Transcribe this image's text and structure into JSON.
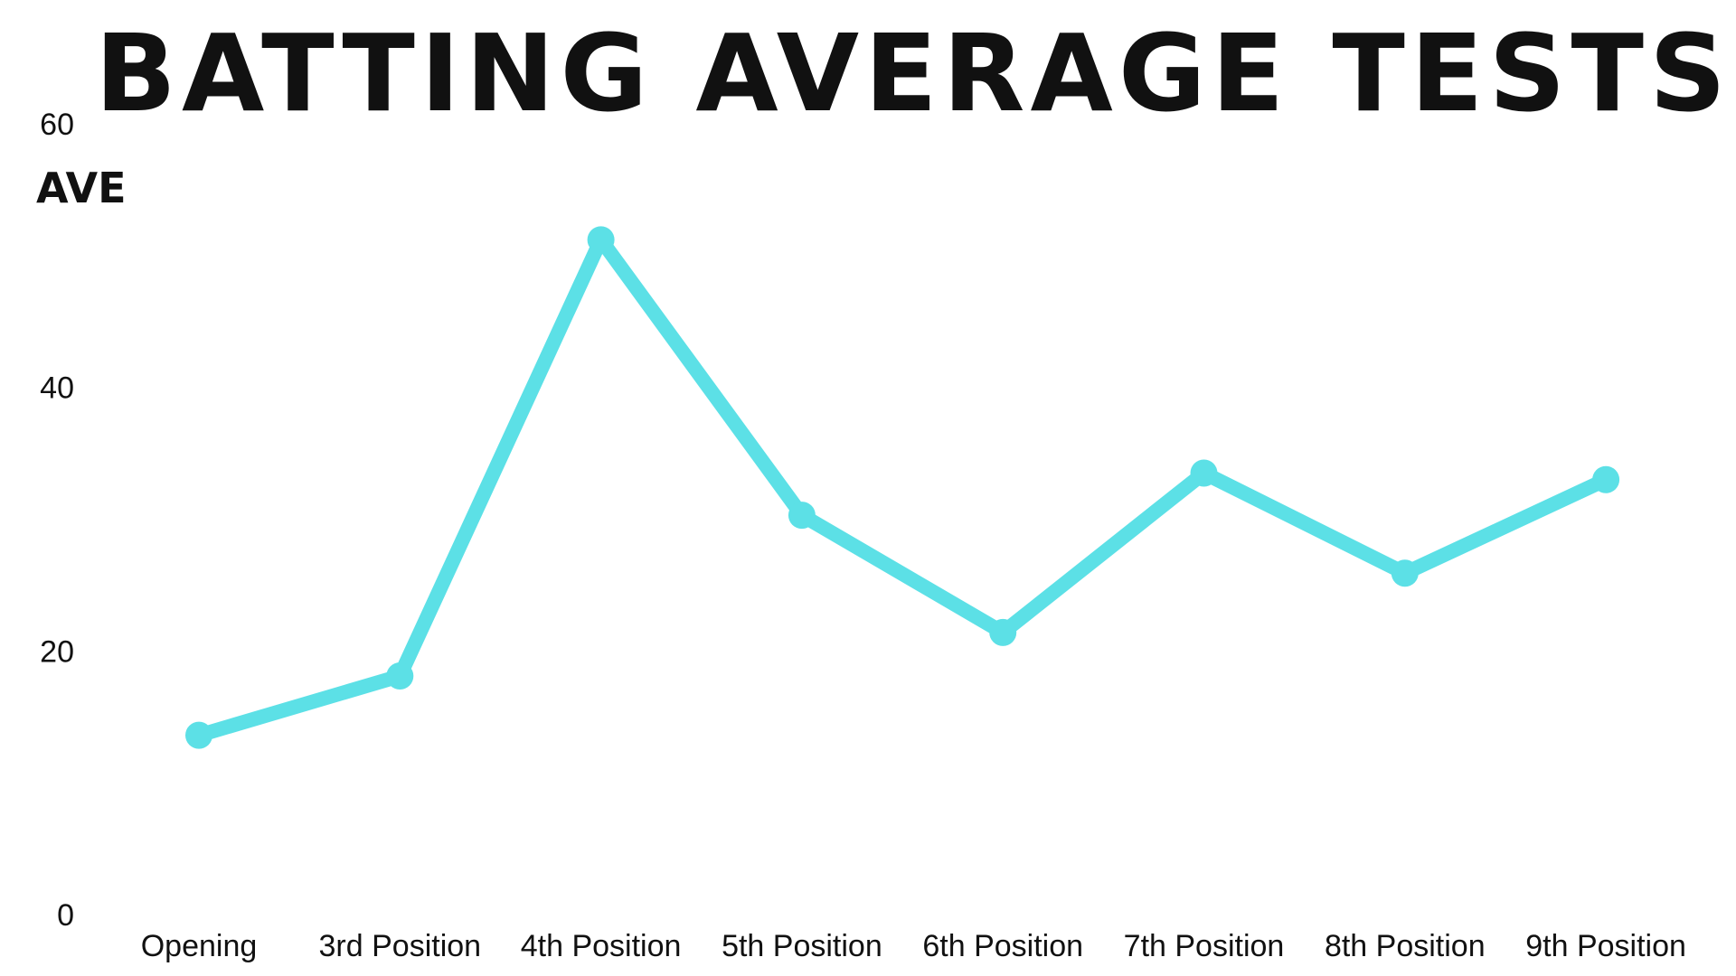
{
  "colors": {
    "line": "#5ce0e6",
    "text": "#111111",
    "background": "#ffffff"
  },
  "chart_data": {
    "type": "line",
    "title": "BATTING AVERAGE TESTS",
    "xlabel": "",
    "ylabel": "AVE",
    "categories": [
      "Opening",
      "3rd Position",
      "4th Position",
      "5th Position",
      "6th Position",
      "7th Position",
      "8th Position",
      "9th Position"
    ],
    "values": [
      13.6,
      18.1,
      51.2,
      30.3,
      21.4,
      33.5,
      25.9,
      33.0
    ],
    "ylim": [
      0,
      60
    ],
    "yticks": [
      "0",
      "20",
      "40",
      "60"
    ],
    "grid": false,
    "legend": "none"
  }
}
